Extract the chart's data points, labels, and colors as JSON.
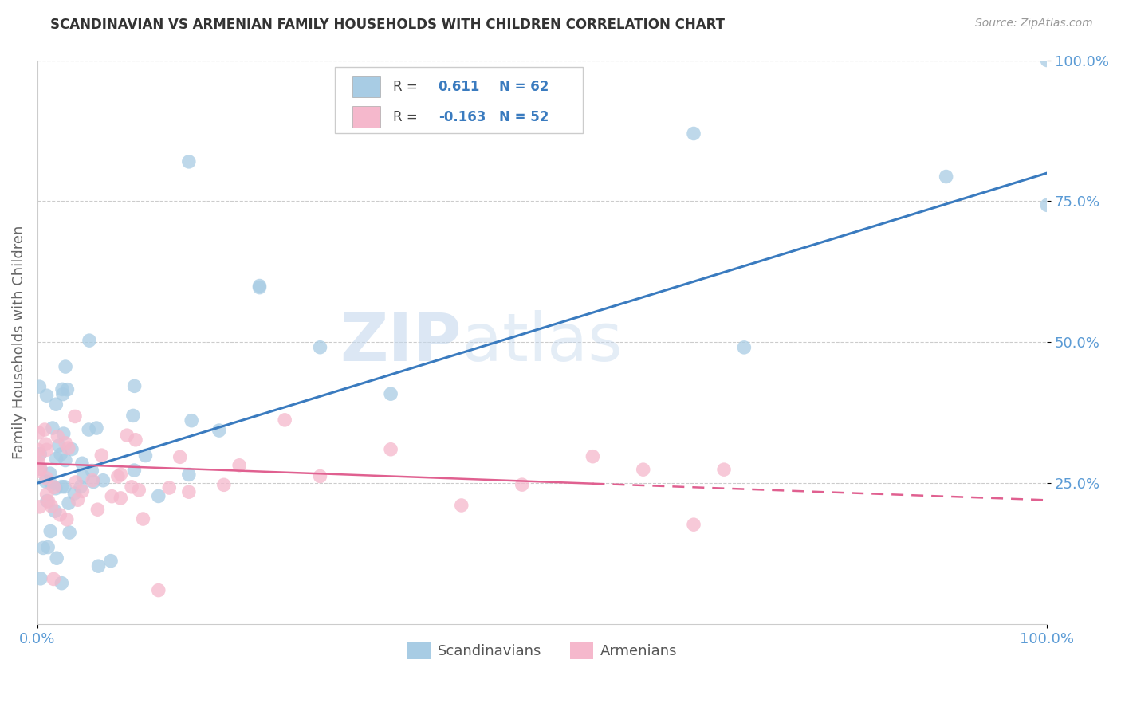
{
  "title": "SCANDINAVIAN VS ARMENIAN FAMILY HOUSEHOLDS WITH CHILDREN CORRELATION CHART",
  "source": "Source: ZipAtlas.com",
  "ylabel": "Family Households with Children",
  "scandinavian_R": 0.611,
  "scandinavian_N": 62,
  "armenian_R": -0.163,
  "armenian_N": 52,
  "blue_scatter_color": "#a8cce4",
  "blue_line_color": "#3a7bbf",
  "pink_scatter_color": "#f5b8cc",
  "pink_line_color": "#e06090",
  "legend_label1": "Scandinavians",
  "legend_label2": "Armenians",
  "watermark_zip": "ZIP",
  "watermark_atlas": "atlas",
  "background_color": "#ffffff",
  "grid_color": "#cccccc",
  "title_color": "#333333",
  "source_color": "#999999",
  "axis_label_color": "#666666",
  "tick_color": "#5b9bd5",
  "legend_R_color": "#444444",
  "legend_N_color": "#3a7bbf",
  "blue_line_y0": 25.0,
  "blue_line_y100": 80.0,
  "pink_line_y0": 28.5,
  "pink_line_y100": 22.0,
  "pink_solid_end": 55.0,
  "ylim_min": 0.0,
  "ylim_max": 100.0,
  "xlim_min": 0.0,
  "xlim_max": 100.0,
  "y_ticks": [
    25.0,
    50.0,
    75.0,
    100.0
  ],
  "x_ticks": [
    0.0,
    100.0
  ]
}
